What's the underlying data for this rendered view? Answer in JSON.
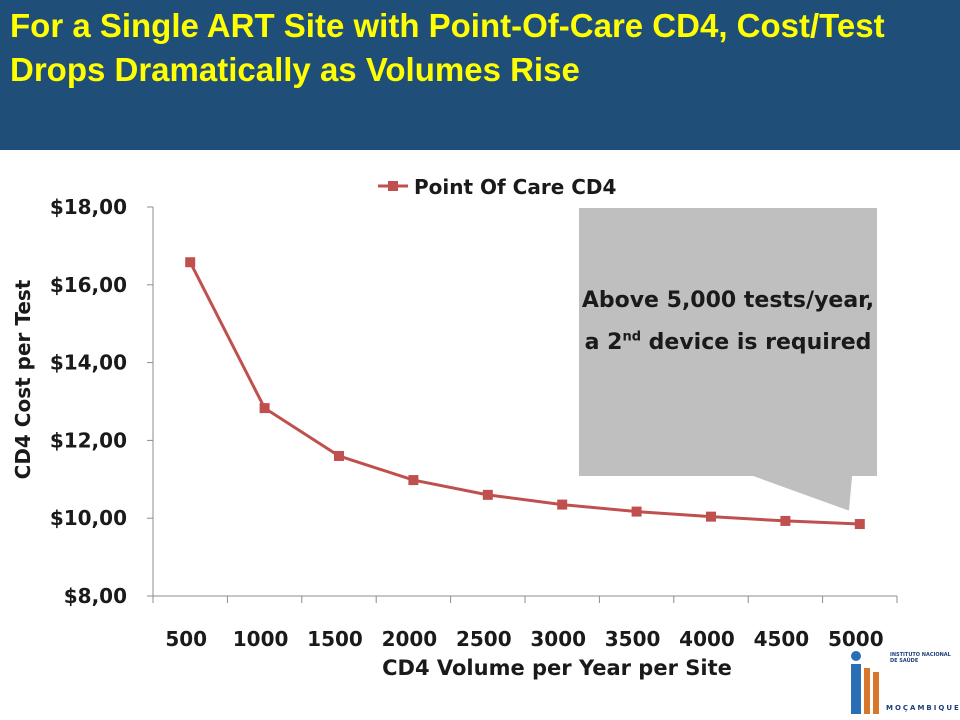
{
  "slide": {
    "title": "For a Single ART Site with Point-Of-Care CD4, Cost/Test Drops Dramatically as Volumes Rise"
  },
  "colors": {
    "title_background": "#1f4e79",
    "title_text": "#ffff00",
    "series_line": "#c0504d",
    "callout_fill": "#bfbfbf"
  },
  "callout": {
    "text_before": "Above 5,000 tests/year, a 2",
    "superscript": "nd",
    "text_after": " device is required"
  },
  "logo": {
    "icon": "ins-logo-icon",
    "line1": "INSTITUTO NACIONAL DE SAÚDE",
    "line2": "MOÇAMBIQUE"
  },
  "chart_data": {
    "type": "line",
    "title": "",
    "xlabel": "CD4 Volume per Year per Site",
    "ylabel": "CD4 Cost per Test",
    "categories": [
      "500",
      "1000",
      "1500",
      "2000",
      "2500",
      "3000",
      "3500",
      "4000",
      "4500",
      "5000"
    ],
    "ylim": [
      8,
      18
    ],
    "yticks": [
      "$8,00",
      "$10,00",
      "$12,00",
      "$14,00",
      "$16,00",
      "$18,00"
    ],
    "ytick_values": [
      8,
      10,
      12,
      14,
      16,
      18
    ],
    "grid": false,
    "legend_position": "top",
    "series": [
      {
        "name": "Point Of Care CD4",
        "values": [
          16.58,
          12.83,
          11.6,
          10.98,
          10.6,
          10.35,
          10.17,
          10.04,
          9.93,
          9.85
        ]
      }
    ]
  }
}
